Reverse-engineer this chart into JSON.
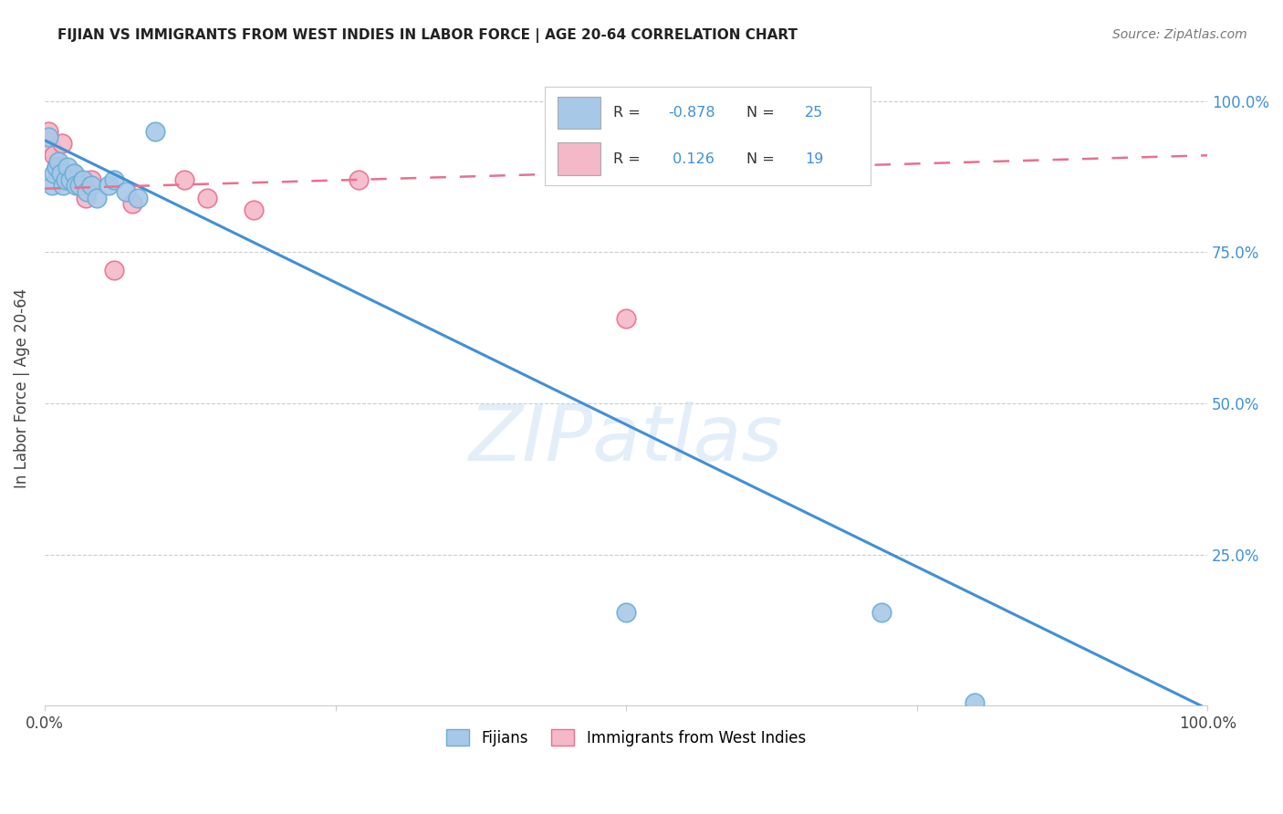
{
  "title": "FIJIAN VS IMMIGRANTS FROM WEST INDIES IN LABOR FORCE | AGE 20-64 CORRELATION CHART",
  "source": "Source: ZipAtlas.com",
  "ylabel": "In Labor Force | Age 20-64",
  "background_color": "#ffffff",
  "watermark": "ZIPatlas",
  "fijian_color": "#a8c8e8",
  "fijian_edge": "#6aaed6",
  "west_indies_color": "#f4b8c8",
  "west_indies_edge": "#e87090",
  "blue_line_color": "#4090d8",
  "pink_line_color": "#e87090",
  "right_axis_color": "#4090d8",
  "fijian_points_x": [
    0.003,
    0.006,
    0.008,
    0.01,
    0.012,
    0.014,
    0.016,
    0.018,
    0.02,
    0.022,
    0.025,
    0.027,
    0.03,
    0.033,
    0.036,
    0.04,
    0.045,
    0.055,
    0.06,
    0.07,
    0.08,
    0.095,
    0.5,
    0.72,
    0.8
  ],
  "fijian_points_y": [
    0.94,
    0.86,
    0.88,
    0.89,
    0.9,
    0.88,
    0.86,
    0.87,
    0.89,
    0.87,
    0.88,
    0.86,
    0.86,
    0.87,
    0.85,
    0.86,
    0.84,
    0.86,
    0.87,
    0.85,
    0.84,
    0.95,
    0.155,
    0.155,
    0.005
  ],
  "west_indies_points_x": [
    0.003,
    0.006,
    0.008,
    0.01,
    0.012,
    0.015,
    0.018,
    0.02,
    0.025,
    0.03,
    0.035,
    0.04,
    0.06,
    0.075,
    0.12,
    0.14,
    0.18,
    0.27,
    0.5
  ],
  "west_indies_points_y": [
    0.95,
    0.92,
    0.91,
    0.89,
    0.88,
    0.93,
    0.88,
    0.87,
    0.88,
    0.86,
    0.84,
    0.87,
    0.72,
    0.83,
    0.87,
    0.84,
    0.82,
    0.87,
    0.64
  ],
  "xlim": [
    0.0,
    1.0
  ],
  "ylim": [
    0.0,
    1.05
  ],
  "fijian_R": -0.878,
  "fijian_N": 25,
  "west_indies_R": 0.126,
  "west_indies_N": 19,
  "blue_line_x0": 0.0,
  "blue_line_y0": 0.935,
  "blue_line_x1": 1.0,
  "blue_line_y1": -0.005,
  "pink_line_x0": 0.0,
  "pink_line_y0": 0.855,
  "pink_line_x1": 1.0,
  "pink_line_y1": 0.91
}
